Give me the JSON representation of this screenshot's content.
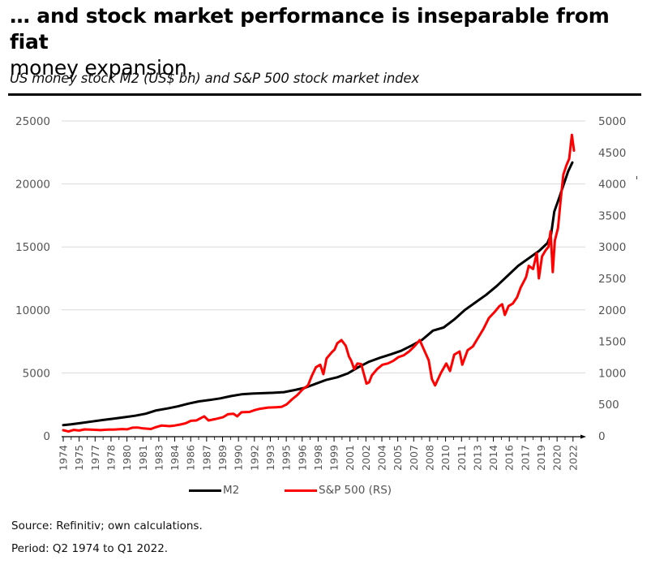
{
  "header": {
    "title_bold": "… and stock market performance is inseparable from fiat",
    "title_normal": "money expansion.",
    "subtitle": "US money stock M2 (US$ bn) and S&P 500 stock market index"
  },
  "colors": {
    "m2": "#000000",
    "sp500": "#ff0000",
    "grid": "#d9d9d9",
    "axis": "#000000"
  },
  "footer": {
    "source": "Source: Refinitiv; own calculations.",
    "period": "Period: Q2 1974 to Q1 2022."
  },
  "chart_data": {
    "type": "line",
    "title": "US money stock M2 (US$ bn) and S&P 500 stock market index",
    "xlabel": "",
    "ylabel": "M2 (US$ bn)",
    "ylabel_right": "S&P 500 (RS)",
    "xlim": [
      1974.25,
      2022.25
    ],
    "ylim": [
      0,
      25000
    ],
    "ylim_right": [
      0,
      5000
    ],
    "y_ticks": [
      "0",
      "5000",
      "10000",
      "15000",
      "20000",
      "25000"
    ],
    "y_ticks_right": [
      "0",
      "500",
      "1000",
      "1500",
      "2000",
      "2500",
      "3000",
      "3500",
      "4000",
      "4500",
      "5000"
    ],
    "x_ticks": [
      "1974",
      "1975",
      "1977",
      "1978",
      "1980",
      "1981",
      "1983",
      "1984",
      "1986",
      "1987",
      "1989",
      "1990",
      "1992",
      "1993",
      "1995",
      "1996",
      "1998",
      "1999",
      "2001",
      "2002",
      "2004",
      "2005",
      "2007",
      "2008",
      "2010",
      "2011",
      "2013",
      "2014",
      "2016",
      "2017",
      "2019",
      "2020",
      "2022"
    ],
    "grid": true,
    "legend": "bottom-center",
    "legend_entries": [
      "M2",
      "S&P 500 (RS)"
    ],
    "series": [
      {
        "name": "M2",
        "axis": "left",
        "points": [
          [
            1974.25,
            860
          ],
          [
            1975,
            920
          ],
          [
            1976,
            1030
          ],
          [
            1977,
            1150
          ],
          [
            1978,
            1260
          ],
          [
            1979,
            1370
          ],
          [
            1980,
            1480
          ],
          [
            1981,
            1600
          ],
          [
            1982,
            1760
          ],
          [
            1983,
            2020
          ],
          [
            1984,
            2170
          ],
          [
            1985,
            2340
          ],
          [
            1986,
            2560
          ],
          [
            1987,
            2740
          ],
          [
            1988,
            2850
          ],
          [
            1989,
            2980
          ],
          [
            1990,
            3160
          ],
          [
            1991,
            3300
          ],
          [
            1992,
            3360
          ],
          [
            1993,
            3390
          ],
          [
            1994,
            3420
          ],
          [
            1995,
            3470
          ],
          [
            1996,
            3640
          ],
          [
            1997,
            3830
          ],
          [
            1998,
            4140
          ],
          [
            1999,
            4450
          ],
          [
            2000,
            4650
          ],
          [
            2001,
            4960
          ],
          [
            2002,
            5460
          ],
          [
            2003,
            5890
          ],
          [
            2004,
            6200
          ],
          [
            2005,
            6460
          ],
          [
            2006,
            6750
          ],
          [
            2007,
            7170
          ],
          [
            2008,
            7640
          ],
          [
            2009,
            8360
          ],
          [
            2010,
            8600
          ],
          [
            2011,
            9240
          ],
          [
            2012,
            10000
          ],
          [
            2013,
            10600
          ],
          [
            2014,
            11200
          ],
          [
            2015,
            11900
          ],
          [
            2016,
            12700
          ],
          [
            2017,
            13500
          ],
          [
            2018,
            14100
          ],
          [
            2019,
            14700
          ],
          [
            2019.75,
            15300
          ],
          [
            2020.1,
            16000
          ],
          [
            2020.4,
            17800
          ],
          [
            2020.9,
            19000
          ],
          [
            2021.3,
            20000
          ],
          [
            2021.7,
            21000
          ],
          [
            2022.1,
            21700
          ]
        ]
      },
      {
        "name": "S&P 500 (RS)",
        "axis": "right",
        "points": [
          [
            1974.25,
            90
          ],
          [
            1974.75,
            70
          ],
          [
            1975.25,
            95
          ],
          [
            1975.75,
            85
          ],
          [
            1976.25,
            103
          ],
          [
            1977,
            98
          ],
          [
            1977.75,
            92
          ],
          [
            1978.5,
            100
          ],
          [
            1979,
            100
          ],
          [
            1979.75,
            108
          ],
          [
            1980.25,
            105
          ],
          [
            1980.75,
            130
          ],
          [
            1981.25,
            133
          ],
          [
            1981.75,
            118
          ],
          [
            1982.5,
            110
          ],
          [
            1982.9,
            135
          ],
          [
            1983.5,
            165
          ],
          [
            1984.25,
            155
          ],
          [
            1984.75,
            165
          ],
          [
            1985.25,
            180
          ],
          [
            1985.75,
            200
          ],
          [
            1986.25,
            240
          ],
          [
            1986.75,
            245
          ],
          [
            1987.5,
            310
          ],
          [
            1987.9,
            245
          ],
          [
            1988.5,
            265
          ],
          [
            1989.25,
            295
          ],
          [
            1989.75,
            345
          ],
          [
            1990.25,
            350
          ],
          [
            1990.6,
            310
          ],
          [
            1991,
            375
          ],
          [
            1991.75,
            380
          ],
          [
            1992.25,
            410
          ],
          [
            1992.75,
            430
          ],
          [
            1993.5,
            450
          ],
          [
            1994.25,
            455
          ],
          [
            1994.75,
            460
          ],
          [
            1995.25,
            500
          ],
          [
            1995.75,
            580
          ],
          [
            1996.25,
            650
          ],
          [
            1996.75,
            740
          ],
          [
            1997.25,
            800
          ],
          [
            1997.6,
            950
          ],
          [
            1998,
            1090
          ],
          [
            1998.4,
            1130
          ],
          [
            1998.7,
            980
          ],
          [
            1999,
            1230
          ],
          [
            1999.5,
            1330
          ],
          [
            1999.75,
            1370
          ],
          [
            2000,
            1470
          ],
          [
            2000.4,
            1520
          ],
          [
            2000.8,
            1430
          ],
          [
            2001.1,
            1260
          ],
          [
            2001.3,
            1200
          ],
          [
            2001.6,
            1060
          ],
          [
            2001.9,
            1150
          ],
          [
            2002.25,
            1140
          ],
          [
            2002.75,
            830
          ],
          [
            2003,
            850
          ],
          [
            2003.25,
            960
          ],
          [
            2003.75,
            1060
          ],
          [
            2004.25,
            1130
          ],
          [
            2004.75,
            1150
          ],
          [
            2005.25,
            1190
          ],
          [
            2005.75,
            1250
          ],
          [
            2006.25,
            1280
          ],
          [
            2006.75,
            1340
          ],
          [
            2007.25,
            1420
          ],
          [
            2007.75,
            1520
          ],
          [
            2008.25,
            1330
          ],
          [
            2008.6,
            1200
          ],
          [
            2008.9,
            900
          ],
          [
            2009.2,
            800
          ],
          [
            2009.75,
            1000
          ],
          [
            2010.25,
            1150
          ],
          [
            2010.6,
            1030
          ],
          [
            2011,
            1290
          ],
          [
            2011.5,
            1340
          ],
          [
            2011.75,
            1130
          ],
          [
            2012.25,
            1360
          ],
          [
            2012.75,
            1420
          ],
          [
            2013.25,
            1560
          ],
          [
            2013.75,
            1700
          ],
          [
            2014.25,
            1870
          ],
          [
            2014.75,
            1960
          ],
          [
            2015.25,
            2060
          ],
          [
            2015.5,
            2090
          ],
          [
            2015.75,
            1920
          ],
          [
            2016.1,
            2060
          ],
          [
            2016.5,
            2100
          ],
          [
            2016.9,
            2200
          ],
          [
            2017.25,
            2360
          ],
          [
            2017.75,
            2520
          ],
          [
            2018,
            2700
          ],
          [
            2018.4,
            2650
          ],
          [
            2018.75,
            2900
          ],
          [
            2018.95,
            2500
          ],
          [
            2019.25,
            2850
          ],
          [
            2019.6,
            2950
          ],
          [
            2019.85,
            3000
          ],
          [
            2020.05,
            3250
          ],
          [
            2020.25,
            2600
          ],
          [
            2020.45,
            3100
          ],
          [
            2020.75,
            3300
          ],
          [
            2021,
            3750
          ],
          [
            2021.25,
            4150
          ],
          [
            2021.55,
            4300
          ],
          [
            2021.8,
            4400
          ],
          [
            2022.05,
            4780
          ],
          [
            2022.25,
            4530
          ]
        ]
      }
    ]
  }
}
